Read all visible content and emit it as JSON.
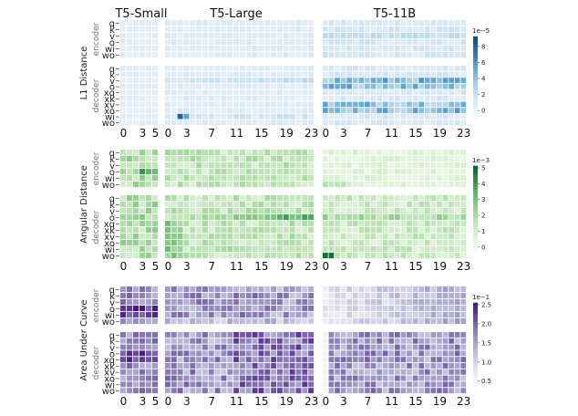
{
  "chart_data": {
    "type": "heatmap",
    "model_titles": [
      "T5-Small",
      "T5-Large",
      "T5-11B"
    ],
    "stack_labels": [
      "encoder",
      "decoder"
    ],
    "encoder_rows": [
      "q",
      "k",
      "v",
      "o",
      "wi",
      "wo"
    ],
    "decoder_rows": [
      "q",
      "k",
      "v",
      "o",
      "xq",
      "xk",
      "xv",
      "xo",
      "wi",
      "wo"
    ],
    "x_ticks": {
      "small": [
        "0",
        "3",
        "5"
      ],
      "large": [
        "0",
        "3",
        "7",
        "11",
        "15",
        "19",
        "23"
      ],
      "xl": [
        "0",
        "3",
        "7",
        "11",
        "15",
        "19",
        "23"
      ]
    },
    "metrics": [
      {
        "name": "L1 Distance",
        "scale_label": "1e−5",
        "colorbar_ticks": [
          "0",
          "2",
          "4",
          "6",
          "8"
        ],
        "cmap": [
          "#f7fbff",
          "#dbe9f6",
          "#b0d2e7",
          "#6aaed6",
          "#2b7bba",
          "#0b4f8a"
        ],
        "vmin": -1,
        "vmax": 9
      },
      {
        "name": "Angular Distance",
        "scale_label": "1e−3",
        "colorbar_ticks": [
          "0",
          "1",
          "2",
          "3",
          "4",
          "5"
        ],
        "cmap": [
          "#f7fcf5",
          "#dcf2d6",
          "#b5e1ac",
          "#7cc77c",
          "#3a9f55",
          "#006b2c"
        ],
        "vmin": -0.3,
        "vmax": 5
      },
      {
        "name": "Area Under Curve",
        "scale_label": "1e−1",
        "colorbar_ticks": [
          "0.5",
          "1.0",
          "1.5",
          "2.0",
          "2.5"
        ],
        "cmap": [
          "#fcfbfd",
          "#e5e4f0",
          "#bfbfdd",
          "#9a93c5",
          "#6f55a5",
          "#4a1486"
        ],
        "vmin": 0.35,
        "vmax": 2.5
      }
    ]
  }
}
